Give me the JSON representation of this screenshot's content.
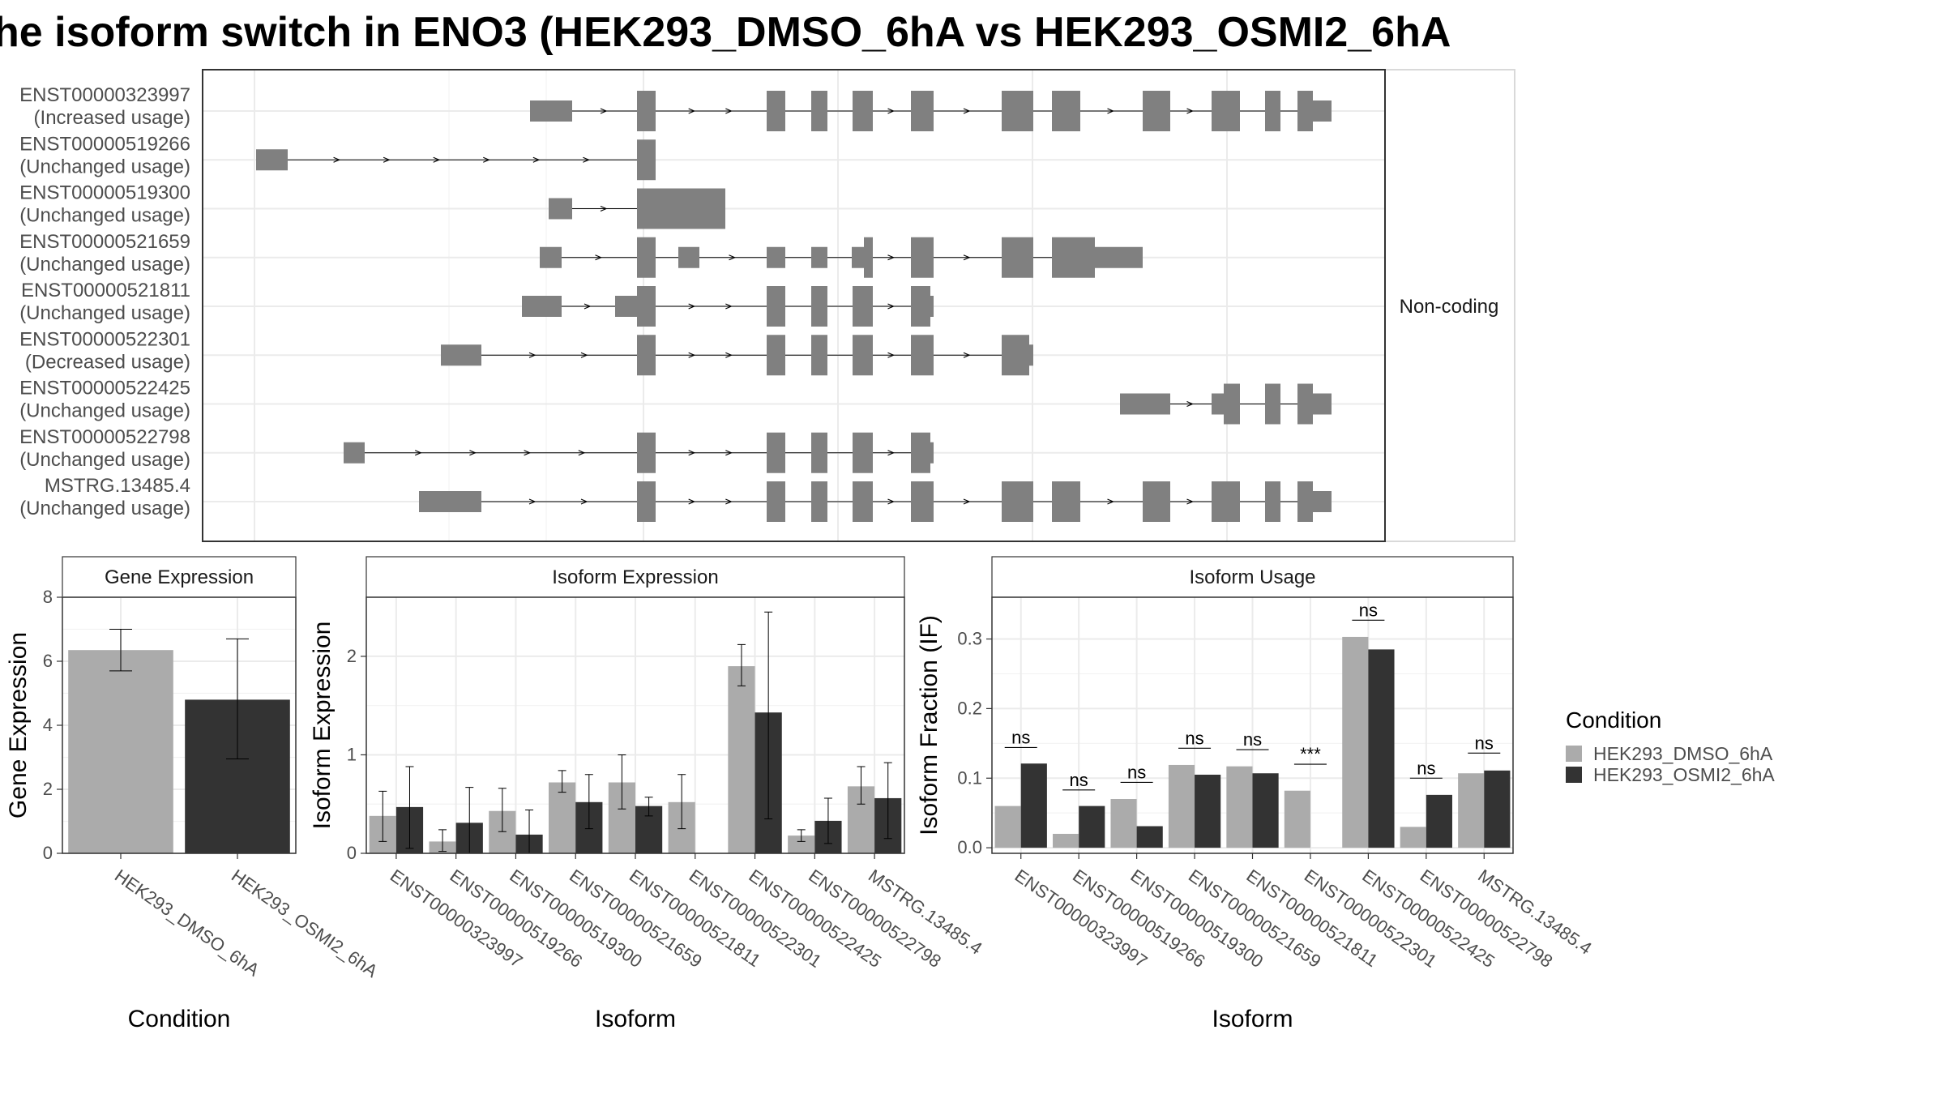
{
  "title": "he isoform switch in ENO3 (HEK293_DMSO_6hA vs HEK293_OSMI2_6hA",
  "colors": {
    "dmso": "#ABABAB",
    "osmi2": "#333333",
    "exon": "#808080",
    "grid": "#EBEBEB",
    "panel_border": "#333333"
  },
  "legend": {
    "title": "Condition",
    "position": "right",
    "items": [
      "HEK293_DMSO_6hA",
      "HEK293_OSMI2_6hA"
    ]
  },
  "transcript_panel": {
    "strip_label": "Non-coding",
    "transcripts": [
      {
        "id": "ENST00000323997",
        "usage": "(Increased usage)"
      },
      {
        "id": "ENST00000519266",
        "usage": "(Unchanged usage)"
      },
      {
        "id": "ENST00000519300",
        "usage": "(Unchanged usage)"
      },
      {
        "id": "ENST00000521659",
        "usage": "(Unchanged usage)"
      },
      {
        "id": "ENST00000521811",
        "usage": "(Unchanged usage)"
      },
      {
        "id": "ENST00000522301",
        "usage": "(Decreased usage)"
      },
      {
        "id": "ENST00000522425",
        "usage": "(Unchanged usage)"
      },
      {
        "id": "ENST00000522798",
        "usage": "(Unchanged usage)"
      },
      {
        "id": "MSTRG.13485.4",
        "usage": "(Unchanged usage)"
      }
    ]
  },
  "chart_data": [
    {
      "type": "bar",
      "title": "Gene Expression",
      "xlabel": "Condition",
      "ylabel": "Gene Expression",
      "ylim": [
        0,
        8
      ],
      "yticks": [
        0,
        2,
        4,
        6,
        8
      ],
      "categories": [
        "HEK293_DMSO_6hA",
        "HEK293_OSMI2_6hA"
      ],
      "values": [
        6.35,
        4.8
      ],
      "error_low": [
        5.7,
        2.95
      ],
      "error_high": [
        7.0,
        6.7
      ],
      "grid": true
    },
    {
      "type": "bar",
      "title": "Isoform Expression",
      "xlabel": "Isoform",
      "ylabel": "Isoform Expression",
      "ylim": [
        0,
        2.6
      ],
      "yticks": [
        0,
        1,
        2
      ],
      "categories": [
        "ENST00000323997",
        "ENST00000519266",
        "ENST00000519300",
        "ENST00000521659",
        "ENST00000521811",
        "ENST00000522301",
        "ENST00000522425",
        "ENST00000522798",
        "MSTRG.13485.4"
      ],
      "series": [
        {
          "name": "HEK293_DMSO_6hA",
          "values": [
            0.38,
            0.12,
            0.43,
            0.72,
            0.72,
            0.52,
            1.9,
            0.18,
            0.68
          ],
          "error_low": [
            0.12,
            0.02,
            0.22,
            0.62,
            0.45,
            0.25,
            1.7,
            0.12,
            0.5
          ],
          "error_high": [
            0.63,
            0.24,
            0.66,
            0.84,
            1.0,
            0.8,
            2.12,
            0.24,
            0.88
          ]
        },
        {
          "name": "HEK293_OSMI2_6hA",
          "values": [
            0.47,
            0.31,
            0.19,
            0.52,
            0.48,
            0.0,
            1.43,
            0.33,
            0.56
          ],
          "error_low": [
            0.05,
            0.0,
            0.0,
            0.25,
            0.38,
            0.0,
            0.35,
            0.1,
            0.15
          ],
          "error_high": [
            0.88,
            0.67,
            0.44,
            0.8,
            0.57,
            0.0,
            2.45,
            0.56,
            0.92
          ]
        }
      ],
      "grid": true
    },
    {
      "type": "bar",
      "title": "Isoform Usage",
      "xlabel": "Isoform",
      "ylabel": "Isoform Fraction (IF)",
      "ylim": [
        -0.008,
        0.36
      ],
      "yticks": [
        0.0,
        0.1,
        0.2,
        0.3
      ],
      "ytick_labels": [
        "0.0",
        "0.1",
        "0.2",
        "0.3"
      ],
      "categories": [
        "ENST00000323997",
        "ENST00000519266",
        "ENST00000519300",
        "ENST00000521659",
        "ENST00000521811",
        "ENST00000522301",
        "ENST00000522425",
        "ENST00000522798",
        "MSTRG.13485.4"
      ],
      "series": [
        {
          "name": "HEK293_DMSO_6hA",
          "values": [
            0.06,
            0.02,
            0.07,
            0.119,
            0.117,
            0.082,
            0.303,
            0.03,
            0.107
          ]
        },
        {
          "name": "HEK293_OSMI2_6hA",
          "values": [
            0.121,
            0.06,
            0.031,
            0.105,
            0.107,
            0.0,
            0.285,
            0.076,
            0.111
          ]
        }
      ],
      "significance": [
        "ns",
        "ns",
        "ns",
        "ns",
        "ns",
        "***",
        "ns",
        "ns",
        "ns"
      ],
      "significance_y": [
        0.144,
        0.083,
        0.094,
        0.143,
        0.141,
        0.12,
        0.327,
        0.1,
        0.136
      ],
      "grid": true
    }
  ]
}
